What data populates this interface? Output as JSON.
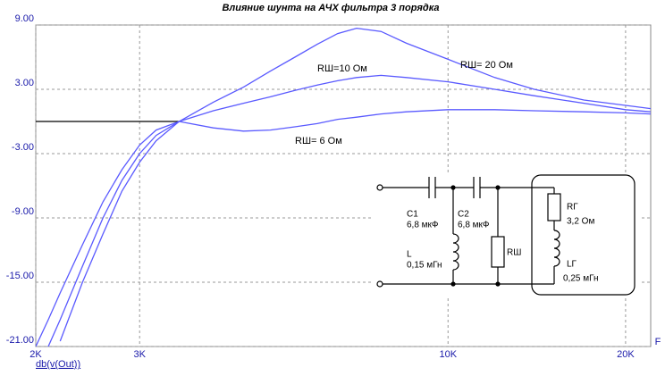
{
  "chart_data": {
    "type": "line",
    "title": "Влияние шунта на АЧХ фильтра 3 порядка",
    "xlabel": "F",
    "ylabel": "db(v(Out))",
    "log_x": true,
    "grid": true,
    "xlim": [
      2000,
      22060
    ],
    "ylim": [
      -21,
      9
    ],
    "xticks": [
      {
        "value": 2000,
        "label": "2K"
      },
      {
        "value": 3000,
        "label": "3K"
      },
      {
        "value": 10000,
        "label": "10K"
      },
      {
        "value": 20000,
        "label": "20K"
      }
    ],
    "yticks": [
      {
        "value": 9,
        "label": "9.00"
      },
      {
        "value": 3,
        "label": "3.00"
      },
      {
        "value": -3,
        "label": "-3.00"
      },
      {
        "value": -9,
        "label": "-9.00"
      },
      {
        "value": -15,
        "label": "-15.00"
      },
      {
        "value": -21,
        "label": "-21.00"
      }
    ],
    "reference_line": {
      "y": 0,
      "x_end": 3500,
      "color": "#000000"
    },
    "x": [
      2000,
      2100,
      2200,
      2400,
      2600,
      2800,
      3000,
      3200,
      3500,
      4000,
      4500,
      5000,
      5500,
      6000,
      6500,
      7000,
      7700,
      8500,
      10000,
      12000,
      14000,
      17000,
      20000,
      22060
    ],
    "series": [
      {
        "name": "RШ= 20 Ом",
        "color": "#5a5aff",
        "values": [
          null,
          null,
          -20.5,
          -15,
          -10.5,
          -6.5,
          -3.8,
          -1.8,
          0,
          1.8,
          3.2,
          4.7,
          6.0,
          7.2,
          8.2,
          8.7,
          8.4,
          7.3,
          5.8,
          4.1,
          3.0,
          2.0,
          1.5,
          1.2
        ]
      },
      {
        "name": "RШ=10 Ом",
        "color": "#5a5aff",
        "values": [
          null,
          -21,
          -18.5,
          -13.5,
          -9,
          -5.5,
          -3,
          -1.3,
          0,
          1,
          1.7,
          2.3,
          2.9,
          3.4,
          3.8,
          4.1,
          4.3,
          4.1,
          3.7,
          3.0,
          2.4,
          1.7,
          1.1,
          0.9
        ]
      },
      {
        "name": "RШ= 6 Ом",
        "color": "#5a5aff",
        "values": [
          -21,
          -18.5,
          -16,
          -11.5,
          -7.5,
          -4.5,
          -2.2,
          -0.8,
          0,
          -0.6,
          -0.9,
          -0.8,
          -0.5,
          -0.2,
          0.2,
          0.4,
          0.7,
          0.9,
          1.1,
          1.1,
          1.0,
          0.9,
          0.8,
          0.7
        ]
      }
    ],
    "schematic": {
      "labels": [
        "C1",
        "6,8 мкФ",
        "C2",
        "6,8 мкФ",
        "L",
        "0,15 мГн",
        "RШ",
        "RГ",
        "3,2 Ом",
        "LГ",
        "0,25 мГн"
      ]
    }
  }
}
